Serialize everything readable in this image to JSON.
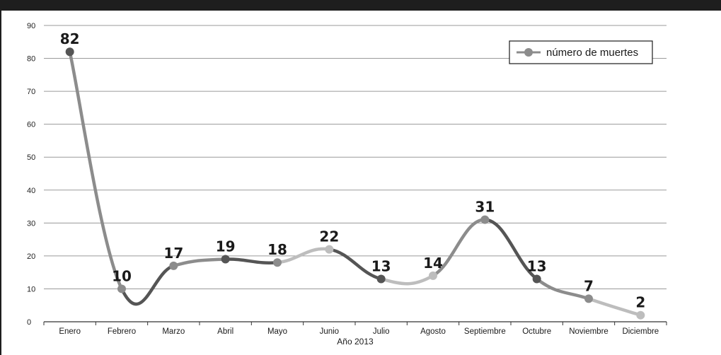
{
  "chart_data": {
    "type": "line",
    "xlabel": "Año 2013",
    "ylabel": "",
    "ylim": [
      0,
      90
    ],
    "yticks": [
      0,
      10,
      20,
      30,
      40,
      50,
      60,
      70,
      80,
      90
    ],
    "grid": true,
    "categories": [
      "Enero",
      "Febrero",
      "Marzo",
      "Abril",
      "Mayo",
      "Junio",
      "Julio",
      "Agosto",
      "Septiembre",
      "Octubre",
      "Noviembre",
      "Diciembre"
    ],
    "series": [
      {
        "name": "número de muertes",
        "values": [
          82,
          10,
          17,
          19,
          18,
          22,
          13,
          14,
          31,
          13,
          7,
          2
        ],
        "data_labels": [
          "82",
          "10",
          "17",
          "19",
          "18",
          "22",
          "13",
          "14",
          "31",
          "13",
          "7",
          "2"
        ]
      }
    ],
    "legend_position": "top-right",
    "colors": {
      "line_dark": "#555555",
      "line_mid": "#8c8c8c",
      "line_light": "#bdbdbd",
      "grid": "#9a9a9a",
      "frame": "#1e1e1e"
    }
  }
}
